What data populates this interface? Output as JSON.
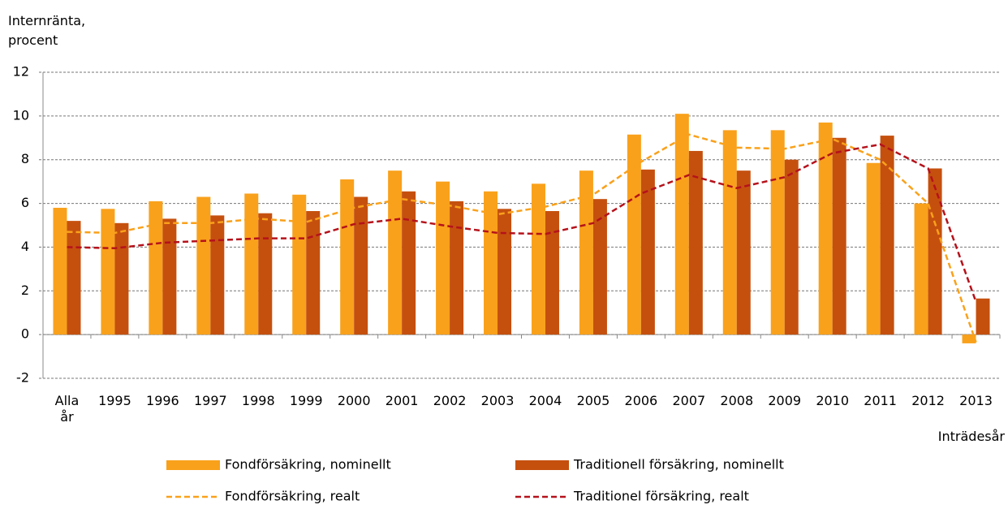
{
  "chart_data": {
    "type": "bar",
    "y_label": "Internränta, procent",
    "x_label": "Inträdesår",
    "categories": [
      "Alla år",
      "1995",
      "1996",
      "1997",
      "1998",
      "1999",
      "2000",
      "2001",
      "2002",
      "2003",
      "2004",
      "2005",
      "2006",
      "2007",
      "2008",
      "2009",
      "2010",
      "2011",
      "2012",
      "2013"
    ],
    "series": [
      {
        "name": "Fondförsäkring, nominellt",
        "type": "bar",
        "color": "#f9a11b",
        "values": [
          5.8,
          5.75,
          6.1,
          6.3,
          6.45,
          6.4,
          7.1,
          7.5,
          7.0,
          6.55,
          6.9,
          7.5,
          9.15,
          10.1,
          9.35,
          9.35,
          9.7,
          7.85,
          6.0,
          -0.4
        ]
      },
      {
        "name": "Traditionell försäkring, nominellt",
        "type": "bar",
        "color": "#c5500e",
        "values": [
          5.2,
          5.1,
          5.3,
          5.45,
          5.55,
          5.65,
          6.3,
          6.55,
          6.1,
          5.75,
          5.65,
          6.2,
          7.55,
          8.4,
          7.5,
          8.0,
          9.0,
          9.1,
          7.6,
          1.65
        ]
      },
      {
        "name": "Fondförsäkring, realt",
        "type": "line",
        "dashed": true,
        "color": "#f9a11b",
        "values": [
          4.7,
          4.65,
          5.1,
          5.1,
          5.3,
          5.15,
          5.8,
          6.2,
          5.9,
          5.5,
          5.85,
          6.4,
          7.9,
          9.15,
          8.55,
          8.5,
          8.95,
          8.0,
          6.0,
          -0.35
        ]
      },
      {
        "name": "Traditionel försäkring, realt",
        "type": "line",
        "dashed": true,
        "color": "#b5121b",
        "values": [
          4.0,
          3.95,
          4.2,
          4.3,
          4.4,
          4.4,
          5.05,
          5.3,
          4.95,
          4.65,
          4.6,
          5.1,
          6.45,
          7.3,
          6.7,
          7.2,
          8.3,
          8.7,
          7.6,
          1.5
        ]
      }
    ],
    "ylim": [
      -2,
      12
    ],
    "yticks": [
      -2,
      0,
      2,
      4,
      6,
      8,
      10,
      12
    ],
    "grid": true
  }
}
